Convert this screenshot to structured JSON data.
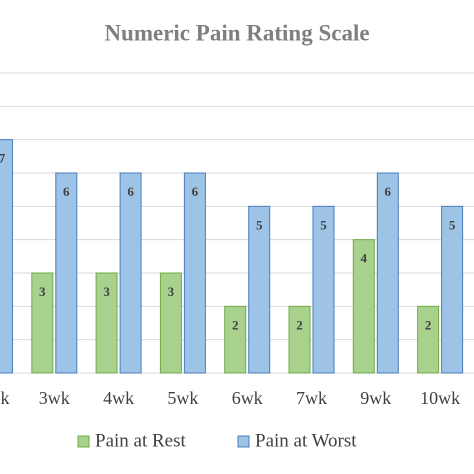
{
  "chart_data": {
    "type": "bar",
    "title": "Numeric Pain Rating Scale",
    "categories": [
      "k",
      "3wk",
      "4wk",
      "5wk",
      "6wk",
      "7wk",
      "9wk",
      "10wk"
    ],
    "series": [
      {
        "name": "Pain at Rest",
        "color": "#a9d18e",
        "values": [
          null,
          3,
          3,
          3,
          2,
          2,
          4,
          2
        ]
      },
      {
        "name": "Pain at Worst",
        "color": "#9dc3e6",
        "values": [
          7,
          6,
          6,
          6,
          5,
          5,
          6,
          5
        ]
      }
    ],
    "ylim": [
      0,
      9
    ],
    "yticks": [
      0,
      1,
      2,
      3,
      4,
      5,
      6,
      7,
      8,
      9
    ],
    "grid": true
  }
}
